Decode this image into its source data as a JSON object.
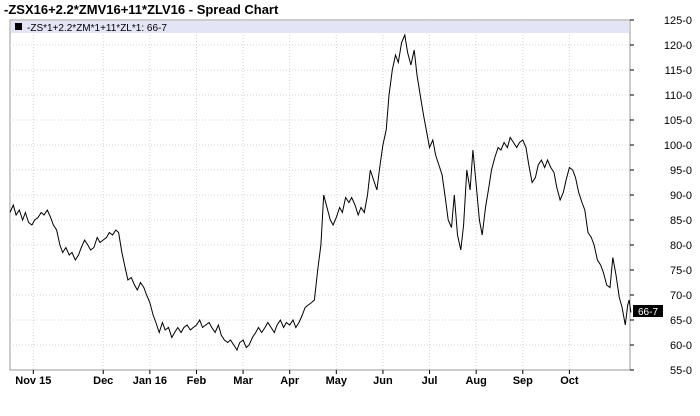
{
  "chart_data": {
    "type": "line",
    "title": "-ZSX16+2.2*ZMV16+11*ZLV16 - Spread Chart",
    "legend_label": "-ZS*1+2.2*ZM*1+11*ZL*1: 66-7",
    "last_value_label": "66-7",
    "ylim": [
      55,
      125
    ],
    "y_ticks": [
      {
        "v": 55,
        "label": "55-0"
      },
      {
        "v": 60,
        "label": "60-0"
      },
      {
        "v": 65,
        "label": "65-0"
      },
      {
        "v": 70,
        "label": "70-0"
      },
      {
        "v": 75,
        "label": "75-0"
      },
      {
        "v": 80,
        "label": "80-0"
      },
      {
        "v": 85,
        "label": "85-0"
      },
      {
        "v": 90,
        "label": "90-0"
      },
      {
        "v": 95,
        "label": "95-0"
      },
      {
        "v": 100,
        "label": "100-0"
      },
      {
        "v": 105,
        "label": "105-0"
      },
      {
        "v": 110,
        "label": "110-0"
      },
      {
        "v": 115,
        "label": "115-0"
      },
      {
        "v": 120,
        "label": "120-0"
      },
      {
        "v": 125,
        "label": "125-0"
      }
    ],
    "x_ticks": [
      {
        "x": 7.5,
        "label": "Nov 15"
      },
      {
        "x": 9,
        "label": "Dec"
      },
      {
        "x": 10,
        "label": "Jan 16"
      },
      {
        "x": 11,
        "label": "Feb"
      },
      {
        "x": 12,
        "label": "Mar"
      },
      {
        "x": 13,
        "label": "Apr"
      },
      {
        "x": 14,
        "label": "May"
      },
      {
        "x": 15,
        "label": "Jun"
      },
      {
        "x": 16,
        "label": "Jul"
      },
      {
        "x": 17,
        "label": "Aug"
      },
      {
        "x": 18,
        "label": "Sep"
      },
      {
        "x": 19,
        "label": "Oct"
      }
    ],
    "xlim": [
      7.0,
      20.3
    ],
    "grid": true,
    "series": [
      {
        "points": [
          [
            7.0,
            86.5
          ],
          [
            7.07,
            88.0
          ],
          [
            7.13,
            86.0
          ],
          [
            7.2,
            87.0
          ],
          [
            7.27,
            85.0
          ],
          [
            7.33,
            86.5
          ],
          [
            7.4,
            84.5
          ],
          [
            7.47,
            84.0
          ],
          [
            7.53,
            85.0
          ],
          [
            7.6,
            85.5
          ],
          [
            7.67,
            86.5
          ],
          [
            7.73,
            86.0
          ],
          [
            7.8,
            87.0
          ],
          [
            7.87,
            85.5
          ],
          [
            7.93,
            84.0
          ],
          [
            8.0,
            83.0
          ],
          [
            8.07,
            80.0
          ],
          [
            8.13,
            78.5
          ],
          [
            8.2,
            79.5
          ],
          [
            8.27,
            78.0
          ],
          [
            8.33,
            78.5
          ],
          [
            8.4,
            77.0
          ],
          [
            8.47,
            78.0
          ],
          [
            8.53,
            79.5
          ],
          [
            8.6,
            81.0
          ],
          [
            8.67,
            80.0
          ],
          [
            8.73,
            79.0
          ],
          [
            8.8,
            79.5
          ],
          [
            8.87,
            81.5
          ],
          [
            8.93,
            80.5
          ],
          [
            9.0,
            81.0
          ],
          [
            9.07,
            81.5
          ],
          [
            9.13,
            82.5
          ],
          [
            9.2,
            82.0
          ],
          [
            9.27,
            83.0
          ],
          [
            9.33,
            82.5
          ],
          [
            9.4,
            78.5
          ],
          [
            9.47,
            75.5
          ],
          [
            9.53,
            73.0
          ],
          [
            9.6,
            73.5
          ],
          [
            9.67,
            72.0
          ],
          [
            9.73,
            71.0
          ],
          [
            9.8,
            72.5
          ],
          [
            9.87,
            71.5
          ],
          [
            9.93,
            70.0
          ],
          [
            10.0,
            68.5
          ],
          [
            10.07,
            66.0
          ],
          [
            10.13,
            64.5
          ],
          [
            10.2,
            62.5
          ],
          [
            10.27,
            64.5
          ],
          [
            10.33,
            63.0
          ],
          [
            10.4,
            63.5
          ],
          [
            10.47,
            61.5
          ],
          [
            10.53,
            62.5
          ],
          [
            10.6,
            63.5
          ],
          [
            10.67,
            62.5
          ],
          [
            10.73,
            63.5
          ],
          [
            10.8,
            64.0
          ],
          [
            10.87,
            63.0
          ],
          [
            10.93,
            63.5
          ],
          [
            11.0,
            64.0
          ],
          [
            11.07,
            65.0
          ],
          [
            11.13,
            63.5
          ],
          [
            11.2,
            64.0
          ],
          [
            11.27,
            64.5
          ],
          [
            11.33,
            63.5
          ],
          [
            11.4,
            62.5
          ],
          [
            11.47,
            64.0
          ],
          [
            11.53,
            62.0
          ],
          [
            11.6,
            61.0
          ],
          [
            11.67,
            60.5
          ],
          [
            11.73,
            61.0
          ],
          [
            11.8,
            60.0
          ],
          [
            11.87,
            59.0
          ],
          [
            11.93,
            60.5
          ],
          [
            12.0,
            61.0
          ],
          [
            12.07,
            59.5
          ],
          [
            12.13,
            60.0
          ],
          [
            12.2,
            61.5
          ],
          [
            12.27,
            62.5
          ],
          [
            12.33,
            63.5
          ],
          [
            12.4,
            62.5
          ],
          [
            12.47,
            63.5
          ],
          [
            12.53,
            64.5
          ],
          [
            12.6,
            63.5
          ],
          [
            12.67,
            62.5
          ],
          [
            12.73,
            64.0
          ],
          [
            12.8,
            65.0
          ],
          [
            12.87,
            63.5
          ],
          [
            12.93,
            64.5
          ],
          [
            13.0,
            64.0
          ],
          [
            13.07,
            65.0
          ],
          [
            13.13,
            63.5
          ],
          [
            13.2,
            64.5
          ],
          [
            13.27,
            66.0
          ],
          [
            13.33,
            67.5
          ],
          [
            13.4,
            68.0
          ],
          [
            13.47,
            68.5
          ],
          [
            13.53,
            69.0
          ],
          [
            13.6,
            75.0
          ],
          [
            13.67,
            80.0
          ],
          [
            13.73,
            90.0
          ],
          [
            13.8,
            87.5
          ],
          [
            13.87,
            85.0
          ],
          [
            13.93,
            84.0
          ],
          [
            14.0,
            85.5
          ],
          [
            14.07,
            87.5
          ],
          [
            14.13,
            86.5
          ],
          [
            14.2,
            89.5
          ],
          [
            14.27,
            88.5
          ],
          [
            14.33,
            89.5
          ],
          [
            14.4,
            88.0
          ],
          [
            14.47,
            86.0
          ],
          [
            14.53,
            87.5
          ],
          [
            14.6,
            86.5
          ],
          [
            14.67,
            90.0
          ],
          [
            14.73,
            95.0
          ],
          [
            14.8,
            93.0
          ],
          [
            14.87,
            91.0
          ],
          [
            14.93,
            95.5
          ],
          [
            15.0,
            100.0
          ],
          [
            15.07,
            103.0
          ],
          [
            15.13,
            110.0
          ],
          [
            15.2,
            115.0
          ],
          [
            15.27,
            118.0
          ],
          [
            15.33,
            116.5
          ],
          [
            15.4,
            120.5
          ],
          [
            15.47,
            122.0
          ],
          [
            15.53,
            118.5
          ],
          [
            15.6,
            116.0
          ],
          [
            15.67,
            119.0
          ],
          [
            15.73,
            114.0
          ],
          [
            15.8,
            110.0
          ],
          [
            15.87,
            106.0
          ],
          [
            15.93,
            103.0
          ],
          [
            16.0,
            99.5
          ],
          [
            16.07,
            101.0
          ],
          [
            16.13,
            98.0
          ],
          [
            16.2,
            96.0
          ],
          [
            16.27,
            94.0
          ],
          [
            16.33,
            90.0
          ],
          [
            16.4,
            85.0
          ],
          [
            16.47,
            83.5
          ],
          [
            16.53,
            90.0
          ],
          [
            16.6,
            82.0
          ],
          [
            16.67,
            79.0
          ],
          [
            16.73,
            84.0
          ],
          [
            16.8,
            95.0
          ],
          [
            16.87,
            91.0
          ],
          [
            16.93,
            99.0
          ],
          [
            17.0,
            92.0
          ],
          [
            17.07,
            85.0
          ],
          [
            17.13,
            82.0
          ],
          [
            17.2,
            87.5
          ],
          [
            17.27,
            91.5
          ],
          [
            17.33,
            95.0
          ],
          [
            17.4,
            97.5
          ],
          [
            17.47,
            99.5
          ],
          [
            17.53,
            99.0
          ],
          [
            17.6,
            100.5
          ],
          [
            17.67,
            99.5
          ],
          [
            17.73,
            101.5
          ],
          [
            17.8,
            100.5
          ],
          [
            17.87,
            99.5
          ],
          [
            17.93,
            100.5
          ],
          [
            18.0,
            101.0
          ],
          [
            18.07,
            99.5
          ],
          [
            18.13,
            96.0
          ],
          [
            18.2,
            92.5
          ],
          [
            18.27,
            93.5
          ],
          [
            18.33,
            96.0
          ],
          [
            18.4,
            97.0
          ],
          [
            18.47,
            95.5
          ],
          [
            18.53,
            97.0
          ],
          [
            18.6,
            95.5
          ],
          [
            18.67,
            94.5
          ],
          [
            18.73,
            91.5
          ],
          [
            18.8,
            89.0
          ],
          [
            18.87,
            90.5
          ],
          [
            18.93,
            93.0
          ],
          [
            19.0,
            95.5
          ],
          [
            19.07,
            95.0
          ],
          [
            19.13,
            93.5
          ],
          [
            19.2,
            90.5
          ],
          [
            19.27,
            88.5
          ],
          [
            19.33,
            87.0
          ],
          [
            19.4,
            82.5
          ],
          [
            19.47,
            81.5
          ],
          [
            19.53,
            80.0
          ],
          [
            19.6,
            77.0
          ],
          [
            19.67,
            76.0
          ],
          [
            19.73,
            74.5
          ],
          [
            19.8,
            72.0
          ],
          [
            19.87,
            71.5
          ],
          [
            19.93,
            77.5
          ],
          [
            20.0,
            74.0
          ],
          [
            20.07,
            69.5
          ],
          [
            20.13,
            67.5
          ],
          [
            20.2,
            64.0
          ],
          [
            20.25,
            68.0
          ],
          [
            20.28,
            69.0
          ],
          [
            20.32,
            66.5
          ]
        ]
      }
    ]
  }
}
